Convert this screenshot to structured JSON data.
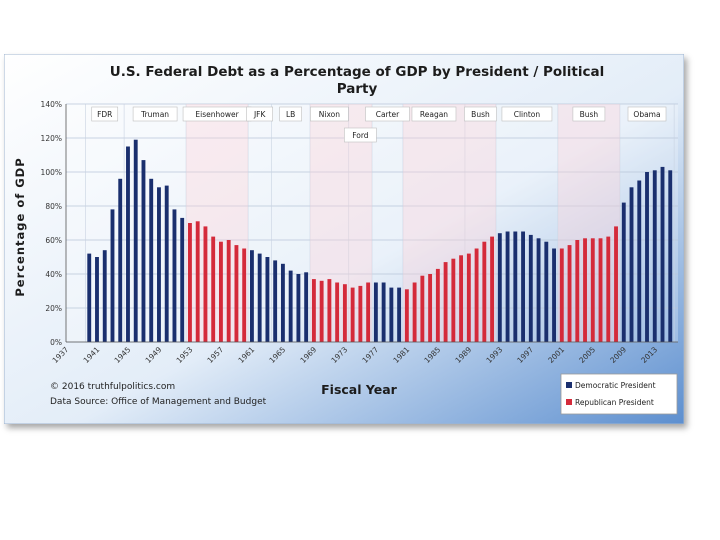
{
  "chart_data": {
    "type": "bar",
    "title": "U.S. Federal Debt as a Percentage of GDP by President / Political Party",
    "xlabel": "Fiscal Year",
    "ylabel": "Percentage of GDP",
    "ylim": [
      0,
      140
    ],
    "yticks": [
      "0%",
      "20%",
      "40%",
      "60%",
      "80%",
      "100%",
      "120%",
      "140%"
    ],
    "xticks": [
      "1937",
      "1941",
      "1945",
      "1949",
      "1953",
      "1957",
      "1961",
      "1965",
      "1969",
      "1973",
      "1977",
      "1981",
      "1985",
      "1989",
      "1993",
      "1997",
      "2001",
      "2005",
      "2009",
      "2013"
    ],
    "grid": true,
    "legend_position": "bottom-right",
    "series": [
      {
        "name": "Democratic President",
        "color": "#1a2f6e"
      },
      {
        "name": "Republican President",
        "color": "#d42a3a"
      }
    ],
    "bars": [
      {
        "x": 1940,
        "value": 52,
        "party": "D"
      },
      {
        "x": 1941,
        "value": 50,
        "party": "D"
      },
      {
        "x": 1942,
        "value": 54,
        "party": "D"
      },
      {
        "x": 1943,
        "value": 78,
        "party": "D"
      },
      {
        "x": 1944,
        "value": 96,
        "party": "D"
      },
      {
        "x": 1945,
        "value": 115,
        "party": "D"
      },
      {
        "x": 1946,
        "value": 119,
        "party": "D"
      },
      {
        "x": 1947,
        "value": 107,
        "party": "D"
      },
      {
        "x": 1948,
        "value": 96,
        "party": "D"
      },
      {
        "x": 1949,
        "value": 91,
        "party": "D"
      },
      {
        "x": 1950,
        "value": 92,
        "party": "D"
      },
      {
        "x": 1951,
        "value": 78,
        "party": "D"
      },
      {
        "x": 1952,
        "value": 73,
        "party": "D"
      },
      {
        "x": 1953,
        "value": 70,
        "party": "R"
      },
      {
        "x": 1954,
        "value": 71,
        "party": "R"
      },
      {
        "x": 1955,
        "value": 68,
        "party": "R"
      },
      {
        "x": 1956,
        "value": 62,
        "party": "R"
      },
      {
        "x": 1957,
        "value": 59,
        "party": "R"
      },
      {
        "x": 1958,
        "value": 60,
        "party": "R"
      },
      {
        "x": 1959,
        "value": 57,
        "party": "R"
      },
      {
        "x": 1960,
        "value": 55,
        "party": "R"
      },
      {
        "x": 1961,
        "value": 54,
        "party": "D"
      },
      {
        "x": 1962,
        "value": 52,
        "party": "D"
      },
      {
        "x": 1963,
        "value": 50,
        "party": "D"
      },
      {
        "x": 1964,
        "value": 48,
        "party": "D"
      },
      {
        "x": 1965,
        "value": 46,
        "party": "D"
      },
      {
        "x": 1966,
        "value": 42,
        "party": "D"
      },
      {
        "x": 1967,
        "value": 40,
        "party": "D"
      },
      {
        "x": 1968,
        "value": 41,
        "party": "D"
      },
      {
        "x": 1969,
        "value": 37,
        "party": "R"
      },
      {
        "x": 1970,
        "value": 36,
        "party": "R"
      },
      {
        "x": 1971,
        "value": 37,
        "party": "R"
      },
      {
        "x": 1972,
        "value": 35,
        "party": "R"
      },
      {
        "x": 1973,
        "value": 34,
        "party": "R"
      },
      {
        "x": 1974,
        "value": 32,
        "party": "R"
      },
      {
        "x": 1975,
        "value": 33,
        "party": "R"
      },
      {
        "x": 1976,
        "value": 35,
        "party": "R"
      },
      {
        "x": 1977,
        "value": 35,
        "party": "D"
      },
      {
        "x": 1978,
        "value": 35,
        "party": "D"
      },
      {
        "x": 1979,
        "value": 32,
        "party": "D"
      },
      {
        "x": 1980,
        "value": 32,
        "party": "D"
      },
      {
        "x": 1981,
        "value": 31,
        "party": "R"
      },
      {
        "x": 1982,
        "value": 35,
        "party": "R"
      },
      {
        "x": 1983,
        "value": 39,
        "party": "R"
      },
      {
        "x": 1984,
        "value": 40,
        "party": "R"
      },
      {
        "x": 1985,
        "value": 43,
        "party": "R"
      },
      {
        "x": 1986,
        "value": 47,
        "party": "R"
      },
      {
        "x": 1987,
        "value": 49,
        "party": "R"
      },
      {
        "x": 1988,
        "value": 51,
        "party": "R"
      },
      {
        "x": 1989,
        "value": 52,
        "party": "R"
      },
      {
        "x": 1990,
        "value": 55,
        "party": "R"
      },
      {
        "x": 1991,
        "value": 59,
        "party": "R"
      },
      {
        "x": 1992,
        "value": 62,
        "party": "R"
      },
      {
        "x": 1993,
        "value": 64,
        "party": "D"
      },
      {
        "x": 1994,
        "value": 65,
        "party": "D"
      },
      {
        "x": 1995,
        "value": 65,
        "party": "D"
      },
      {
        "x": 1996,
        "value": 65,
        "party": "D"
      },
      {
        "x": 1997,
        "value": 63,
        "party": "D"
      },
      {
        "x": 1998,
        "value": 61,
        "party": "D"
      },
      {
        "x": 1999,
        "value": 59,
        "party": "D"
      },
      {
        "x": 2000,
        "value": 55,
        "party": "D"
      },
      {
        "x": 2001,
        "value": 55,
        "party": "R"
      },
      {
        "x": 2002,
        "value": 57,
        "party": "R"
      },
      {
        "x": 2003,
        "value": 60,
        "party": "R"
      },
      {
        "x": 2004,
        "value": 61,
        "party": "R"
      },
      {
        "x": 2005,
        "value": 61,
        "party": "R"
      },
      {
        "x": 2006,
        "value": 61,
        "party": "R"
      },
      {
        "x": 2007,
        "value": 62,
        "party": "R"
      },
      {
        "x": 2008,
        "value": 68,
        "party": "R"
      },
      {
        "x": 2009,
        "value": 82,
        "party": "D"
      },
      {
        "x": 2010,
        "value": 91,
        "party": "D"
      },
      {
        "x": 2011,
        "value": 95,
        "party": "D"
      },
      {
        "x": 2012,
        "value": 100,
        "party": "D"
      },
      {
        "x": 2013,
        "value": 101,
        "party": "D"
      },
      {
        "x": 2014,
        "value": 103,
        "party": "D"
      },
      {
        "x": 2015,
        "value": 101,
        "party": "D"
      }
    ],
    "president_terms": [
      {
        "label": "FDR",
        "start": 1940,
        "end": 1945,
        "party": "D",
        "row": 0
      },
      {
        "label": "Truman",
        "start": 1945,
        "end": 1953,
        "party": "D",
        "row": 0
      },
      {
        "label": "Eisenhower",
        "start": 1953,
        "end": 1961,
        "party": "R",
        "row": 0
      },
      {
        "label": "JFK",
        "start": 1961,
        "end": 1964,
        "party": "D",
        "row": 0
      },
      {
        "label": "LB",
        "start": 1964,
        "end": 1969,
        "party": "D",
        "row": 0
      },
      {
        "label": "Nixon",
        "start": 1969,
        "end": 1974,
        "party": "R",
        "row": 0
      },
      {
        "label": "Ford",
        "start": 1974,
        "end": 1977,
        "party": "R",
        "row": 1
      },
      {
        "label": "Carter",
        "start": 1977,
        "end": 1981,
        "party": "D",
        "row": 0
      },
      {
        "label": "Reagan",
        "start": 1981,
        "end": 1989,
        "party": "R",
        "row": 0
      },
      {
        "label": "Bush",
        "start": 1989,
        "end": 1993,
        "party": "R",
        "row": 0
      },
      {
        "label": "Clinton",
        "start": 1993,
        "end": 2001,
        "party": "D",
        "row": 0
      },
      {
        "label": "Bush",
        "start": 2001,
        "end": 2009,
        "party": "R",
        "row": 0
      },
      {
        "label": "Obama",
        "start": 2009,
        "end": 2016,
        "party": "D",
        "row": 0
      }
    ],
    "annotations": {
      "copyright": "© 2016 truthfulpolitics.com",
      "source": "Data Source: Office of Management and Budget"
    }
  }
}
